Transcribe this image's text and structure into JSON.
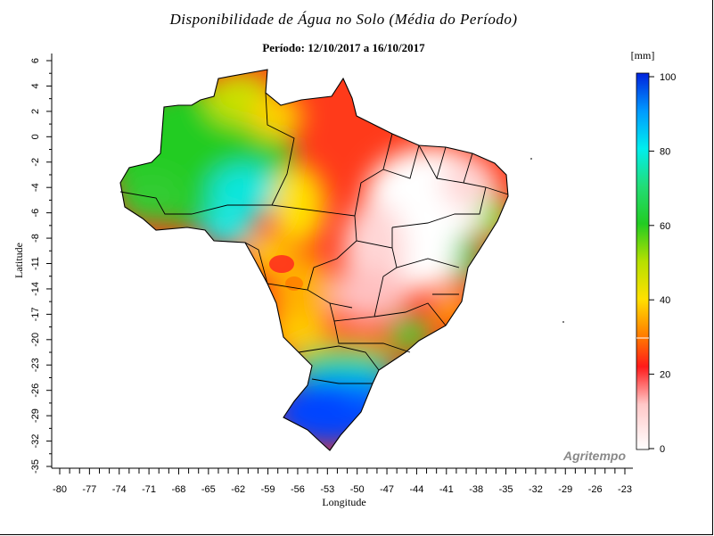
{
  "title": "Disponibilidade de Água no Solo (Média do Período)",
  "subtitle": "Período: 12/10/2017 a 16/10/2017",
  "watermark": "Agritempo",
  "axes": {
    "x_label": "Longitude",
    "y_label": "Latitude",
    "x_ticks": [
      "-80",
      "-77",
      "-74",
      "-71",
      "-68",
      "-65",
      "-62",
      "-59",
      "-56",
      "-53",
      "-50",
      "-47",
      "-44",
      "-41",
      "-38",
      "-35",
      "-32",
      "-29",
      "-26",
      "-23"
    ],
    "y_ticks": [
      "6",
      "4",
      "2",
      "0",
      "-2",
      "-4",
      "-6",
      "-8",
      "-11",
      "-14",
      "-17",
      "-20",
      "-23",
      "-26",
      "-29",
      "-32",
      "-35"
    ]
  },
  "colorbar": {
    "unit": "[mm]",
    "ticks": [
      "100",
      "80",
      "60",
      "40",
      "20",
      "0"
    ],
    "colors": [
      "#ffffff",
      "#ff1010",
      "#ffe600",
      "#11cc11",
      "#00eeee",
      "#0000ff"
    ]
  },
  "map_regions": [
    {
      "name": "amazonas-west",
      "level": 62
    },
    {
      "name": "northeast-interior",
      "level": 5
    },
    {
      "name": "center-west",
      "level": 18
    },
    {
      "name": "south",
      "level": 98
    }
  ]
}
